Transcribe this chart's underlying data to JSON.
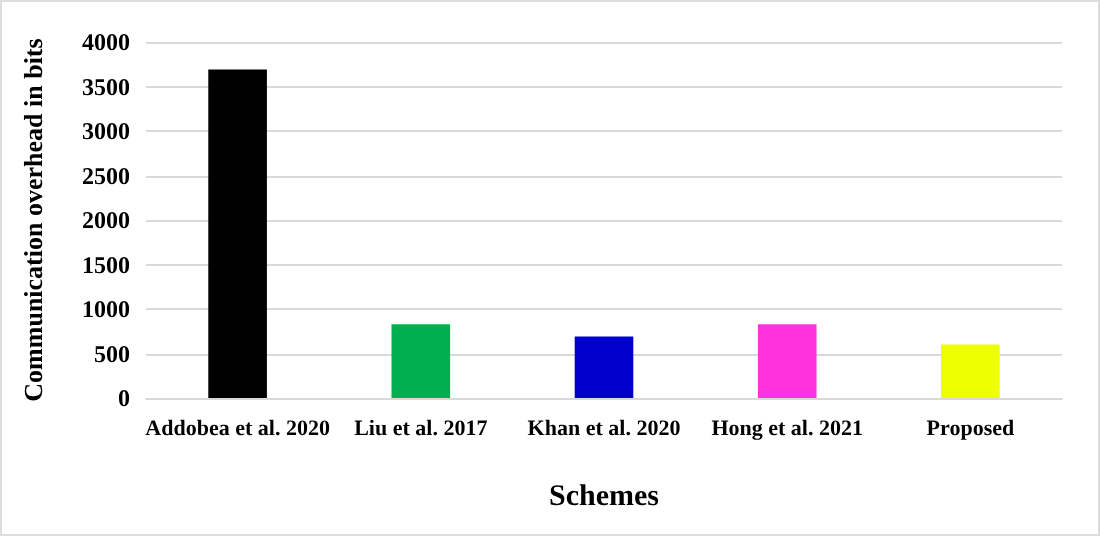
{
  "chart_data": {
    "type": "bar",
    "xlabel": "Schemes",
    "ylabel": "Communication overhead in bits",
    "categories": [
      "Addobea et al. 2020",
      "Liu et al. 2017",
      "Khan et al. 2020",
      "Hong et al. 2021",
      "Proposed"
    ],
    "values": [
      3690,
      830,
      690,
      830,
      600
    ],
    "colors": [
      "#000000",
      "#00b050",
      "#0000cc",
      "#ff33dd",
      "#eeff00"
    ],
    "ylim": [
      0,
      4000
    ],
    "yticks": [
      0,
      500,
      1000,
      1500,
      2000,
      2500,
      3000,
      3500,
      4000
    ],
    "grid": "y"
  }
}
